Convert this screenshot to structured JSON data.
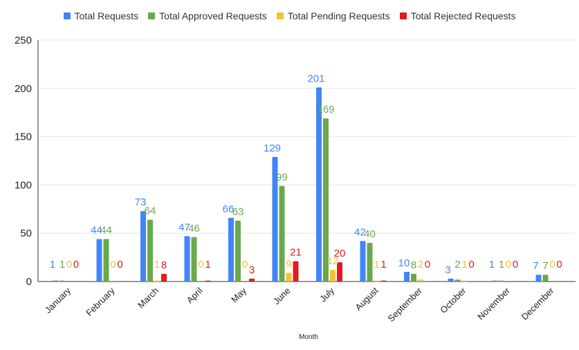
{
  "chart_data": {
    "type": "bar",
    "title": "",
    "xlabel": "Month",
    "ylabel": "",
    "ylim": [
      0,
      250
    ],
    "yticks": [
      0,
      50,
      100,
      150,
      200,
      250
    ],
    "grid": true,
    "legend_position": "top",
    "categories": [
      "January",
      "February",
      "March",
      "April",
      "May",
      "June",
      "July",
      "August",
      "September",
      "October",
      "November",
      "December"
    ],
    "series": [
      {
        "name": "Total Requests",
        "color": "#4285f4",
        "values": [
          1,
          44,
          73,
          47,
          66,
          129,
          201,
          42,
          10,
          3,
          1,
          7
        ]
      },
      {
        "name": "Total Approved Requests",
        "color": "#6aa84f",
        "values": [
          1,
          44,
          64,
          46,
          63,
          99,
          169,
          40,
          8,
          2,
          1,
          7
        ]
      },
      {
        "name": "Total Pending Requests",
        "color": "#f1c232",
        "values": [
          0,
          0,
          1,
          0,
          0,
          9,
          12,
          1,
          2,
          1,
          0,
          0
        ]
      },
      {
        "name": "Total Rejected Requests",
        "color": "#e31a1c",
        "values": [
          0,
          0,
          8,
          1,
          3,
          21,
          20,
          1,
          0,
          0,
          0,
          0
        ]
      }
    ]
  }
}
